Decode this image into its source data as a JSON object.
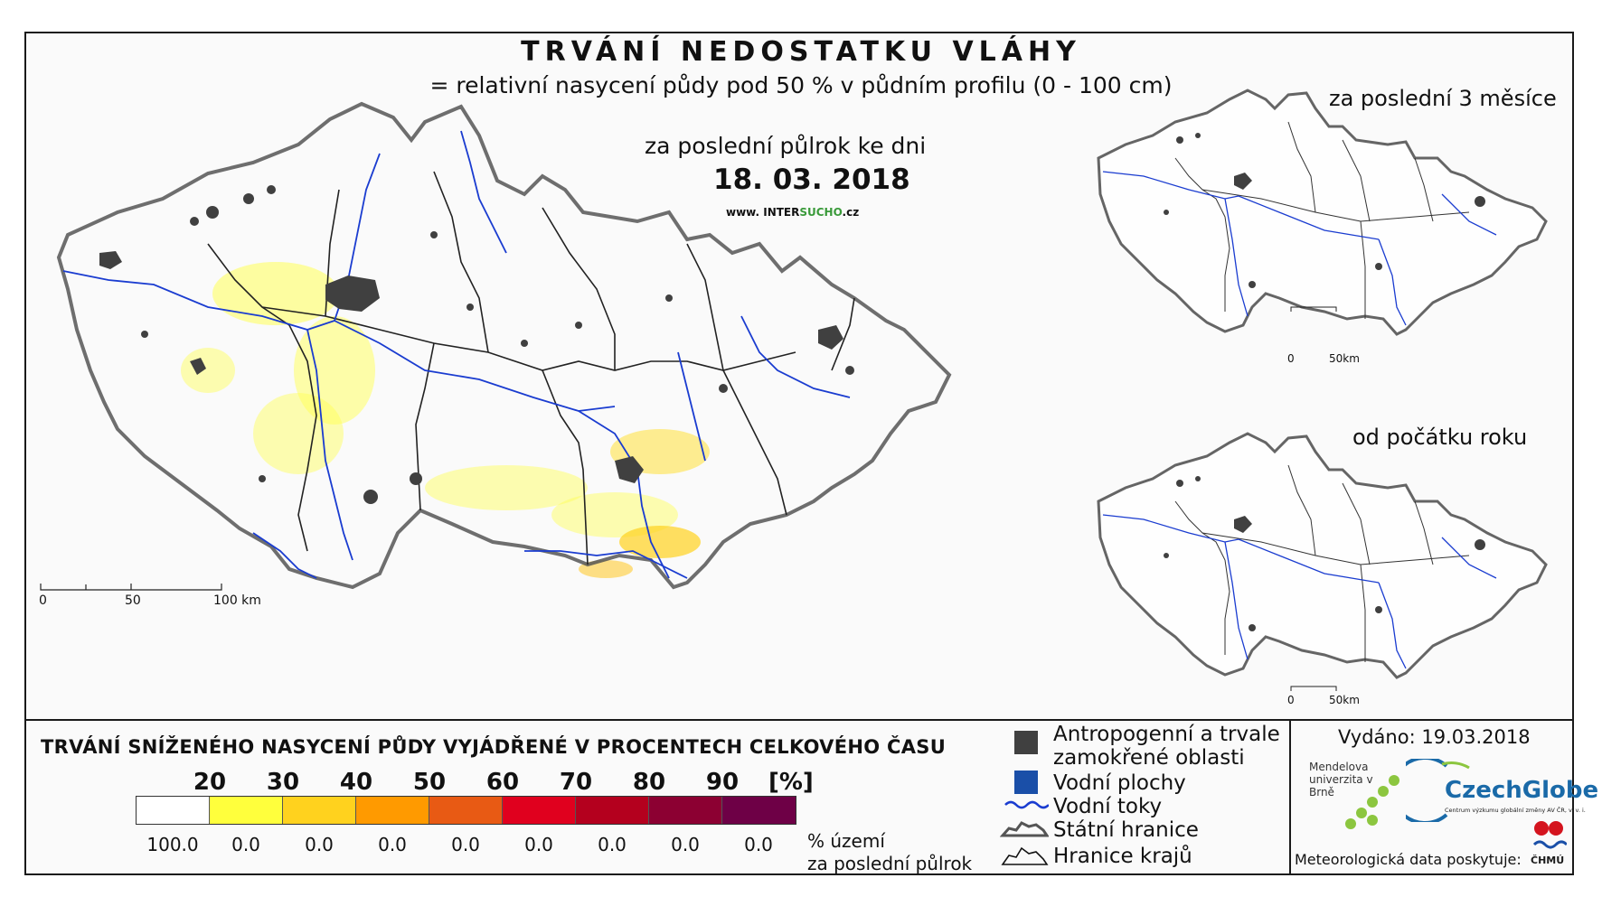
{
  "header": {
    "title": "TRVÁNÍ NEDOSTATKU VLÁHY",
    "subtitle": "= relativní nasycení půdy pod 50 % v půdním profilu (0 - 100 cm)"
  },
  "main_map": {
    "period_label": "za poslední půlrok ke dni",
    "date": "18. 03. 2018",
    "website_prefix": "www. INTER",
    "website_brand": "SUCHO",
    "website_suffix": ".cz",
    "scale": {
      "zero": "0",
      "mid": "50",
      "end": "100 km"
    }
  },
  "insets": [
    {
      "title": "za poslední 3 měsíce",
      "scale_zero": "0",
      "scale_end": "50km"
    },
    {
      "title": "od počátku roku",
      "scale_zero": "0",
      "scale_end": "50km"
    }
  ],
  "legend": {
    "title": "TRVÁNÍ SNÍŽENÉHO NASYCENÍ PŮDY VYJÁDŘENÉ V PROCENTECH CELKOVÉHO ČASU",
    "thresholds": [
      "20",
      "30",
      "40",
      "50",
      "60",
      "70",
      "80",
      "90"
    ],
    "unit": "[%]",
    "colors": [
      "#ffffff",
      "#ffff3c",
      "#ffd21e",
      "#ff9a00",
      "#e85a14",
      "#e0001e",
      "#b4001e",
      "#8c0032",
      "#6e0046"
    ],
    "percentages": [
      "100.0",
      "0.0",
      "0.0",
      "0.0",
      "0.0",
      "0.0",
      "0.0",
      "0.0",
      "0.0"
    ],
    "pct_caption_line1": "% území",
    "pct_caption_line2": "za poslední půlrok"
  },
  "key": {
    "anthropogenic_line1": "Antropogenní a trvale",
    "anthropogenic_line2": "zamokřené oblasti",
    "water_bodies": "Vodní plochy",
    "rivers": "Vodní toky",
    "state_border": "Státní hranice",
    "region_border": "Hranice krajů",
    "colors": {
      "anthropogenic": "#404040",
      "water_bodies": "#1a4fa8",
      "rivers": "#1a3cd0"
    }
  },
  "credits": {
    "issued": "Vydáno: 19.03.2018",
    "mendel": "Mendelova univerzita v Brně",
    "czechglobe": "CzechGlobe",
    "czechglobe_sub": "Centrum výzkumu globální změny AV ČR, v. v. i.",
    "meteo": "Meteorologická data poskytuje:",
    "chmu": "ČHMÚ"
  }
}
